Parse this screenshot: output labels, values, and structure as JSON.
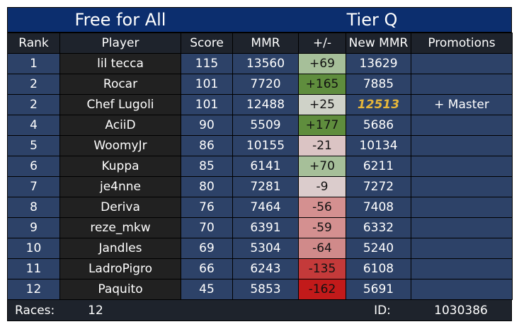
{
  "title": {
    "left": "Free for All",
    "right": "Tier Q"
  },
  "columns": [
    "Rank",
    "Player",
    "Score",
    "MMR",
    "+/-",
    "New MMR",
    "Promotions"
  ],
  "colors": {
    "header_bg": "#0c2e6e",
    "column_header_bg": "#1e232c",
    "row_bg": "#2d4268",
    "player_bg": "#212121",
    "promotion_mmr": "#e6b63a"
  },
  "rows": [
    {
      "rank": "1",
      "player": "lil tecca",
      "score": "115",
      "mmr": "13560",
      "delta": "+69",
      "delta_color": "#a6bf99",
      "new_mmr": "13629",
      "promotion": ""
    },
    {
      "rank": "2",
      "player": "Rocar",
      "score": "101",
      "mmr": "7720",
      "delta": "+165",
      "delta_color": "#5f8d3d",
      "new_mmr": "7885",
      "promotion": ""
    },
    {
      "rank": "2",
      "player": "Chef Lugoli",
      "score": "101",
      "mmr": "12488",
      "delta": "+25",
      "delta_color": "#cfd2c8",
      "new_mmr": "12513",
      "promotion": "+ Master",
      "promoted": true
    },
    {
      "rank": "4",
      "player": "AciiD",
      "score": "90",
      "mmr": "5509",
      "delta": "+177",
      "delta_color": "#5f8d3d",
      "new_mmr": "5686",
      "promotion": ""
    },
    {
      "rank": "5",
      "player": "WoomyJr",
      "score": "86",
      "mmr": "10155",
      "delta": "-21",
      "delta_color": "#dbc4c4",
      "new_mmr": "10134",
      "promotion": ""
    },
    {
      "rank": "6",
      "player": "Kuppa",
      "score": "85",
      "mmr": "6141",
      "delta": "+70",
      "delta_color": "#a6bf99",
      "new_mmr": "6211",
      "promotion": ""
    },
    {
      "rank": "7",
      "player": "je4nne",
      "score": "80",
      "mmr": "7281",
      "delta": "-9",
      "delta_color": "#dbcccc",
      "new_mmr": "7272",
      "promotion": ""
    },
    {
      "rank": "8",
      "player": "Deriva",
      "score": "76",
      "mmr": "7464",
      "delta": "-56",
      "delta_color": "#d49090",
      "new_mmr": "7408",
      "promotion": ""
    },
    {
      "rank": "9",
      "player": "reze_mkw",
      "score": "70",
      "mmr": "6391",
      "delta": "-59",
      "delta_color": "#d49090",
      "new_mmr": "6332",
      "promotion": ""
    },
    {
      "rank": "10",
      "player": "Jandles",
      "score": "69",
      "mmr": "5304",
      "delta": "-64",
      "delta_color": "#d08a8a",
      "new_mmr": "5240",
      "promotion": ""
    },
    {
      "rank": "11",
      "player": "LadroPigro",
      "score": "66",
      "mmr": "6243",
      "delta": "-135",
      "delta_color": "#c43a3a",
      "new_mmr": "6108",
      "promotion": ""
    },
    {
      "rank": "12",
      "player": "Paquito",
      "score": "45",
      "mmr": "5853",
      "delta": "-162",
      "delta_color": "#c21a1a",
      "new_mmr": "5691",
      "promotion": ""
    }
  ],
  "footer": {
    "races_label": "Races:",
    "races_value": "12",
    "id_label": "ID:",
    "id_value": "1030386"
  }
}
